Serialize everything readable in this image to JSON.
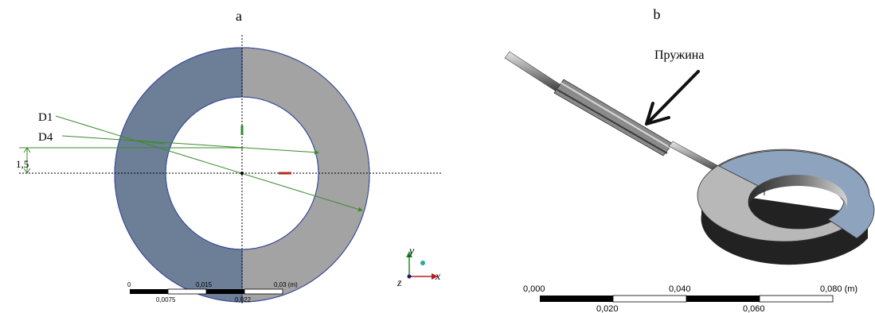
{
  "panels": {
    "a": {
      "label": "a",
      "dimensions": {
        "d1": "D1",
        "d4": "D4",
        "offset": "1,5"
      },
      "axes": {
        "y": "y",
        "x": "x",
        "z": "z"
      },
      "scale_bar": {
        "top_labels": [
          "0",
          "0,015",
          "0,03 (m)"
        ],
        "bottom_labels": [
          "0,0075",
          "0,022"
        ]
      },
      "colors": {
        "blue_half": "#6c7f96",
        "gray_half": "#a3a3a3",
        "dimension_line": "#3d8a2e"
      }
    },
    "b": {
      "label": "b",
      "annotation": "Пружина",
      "scale_bar": {
        "top_labels": [
          "0,000",
          "0,040",
          "0,080 (m)"
        ],
        "bottom_labels": [
          "0,020",
          "0,060"
        ]
      },
      "colors": {
        "blue_face": "#8ea3bd",
        "gray_face": "#b8b8b8"
      }
    }
  }
}
